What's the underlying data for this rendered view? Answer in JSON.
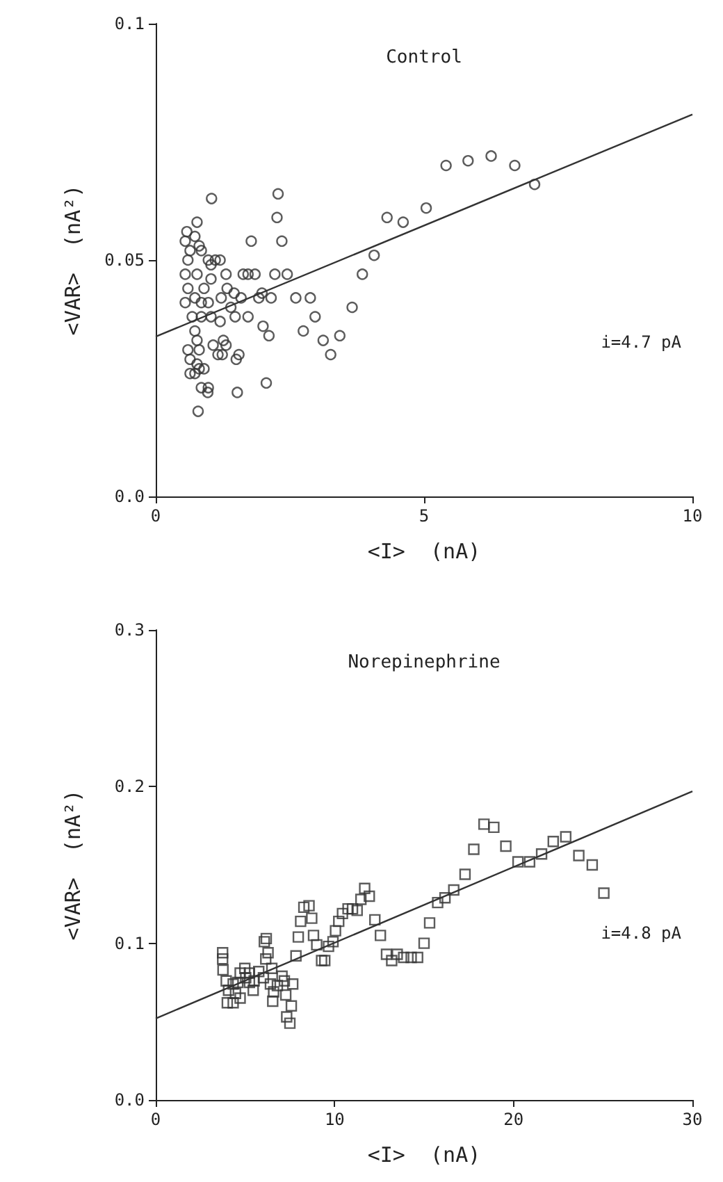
{
  "chart_data": [
    {
      "type": "scatter",
      "title": "Control",
      "xlabel": "<I>  (nA)",
      "ylabel": "<VAR>  (nA²)",
      "xlim": [
        0,
        10
      ],
      "xticks": [
        0,
        5,
        10
      ],
      "ylim": [
        0,
        0.1
      ],
      "yticks": [
        {
          "value": 0,
          "label": "0.0"
        },
        0.05,
        0.1
      ],
      "annotations": [
        "i=4.7 pA"
      ],
      "series": [
        {
          "marker": "circle",
          "color": "#333333",
          "x": [
            1.04,
            0.77,
            0.58,
            0.55,
            0.73,
            0.81,
            0.64,
            0.85,
            0.6,
            0.98,
            1.11,
            1.2,
            1.03,
            0.55,
            0.77,
            1.03,
            1.31,
            1.63,
            1.72,
            1.85,
            2.22,
            2.45,
            2.28,
            2.26,
            2.35,
            1.78,
            0.6,
            0.9,
            1.33,
            1.46,
            1.59,
            1.98,
            0.55,
            0.73,
            0.85,
            0.98,
            1.22,
            1.4,
            1.92,
            2.15,
            2.61,
            2.88,
            2.97,
            3.66,
            2.75,
            3.12,
            3.43,
            3.26,
            0.68,
            0.85,
            1.03,
            1.2,
            1.48,
            1.72,
            2.0,
            2.11,
            0.73,
            0.6,
            0.77,
            0.81,
            1.07,
            1.26,
            1.31,
            1.16,
            1.24,
            1.55,
            1.5,
            0.64,
            0.77,
            0.64,
            0.81,
            0.73,
            0.9,
            0.85,
            0.98,
            0.97,
            1.52,
            2.06,
            0.79,
            3.85,
            4.07,
            4.31,
            4.61,
            5.04,
            5.41,
            5.82,
            6.25,
            6.69,
            7.06
          ],
          "values": [
            0.063,
            0.058,
            0.056,
            0.054,
            0.055,
            0.053,
            0.052,
            0.052,
            0.05,
            0.05,
            0.05,
            0.05,
            0.049,
            0.047,
            0.047,
            0.046,
            0.047,
            0.047,
            0.047,
            0.047,
            0.047,
            0.047,
            0.064,
            0.059,
            0.054,
            0.054,
            0.044,
            0.044,
            0.044,
            0.043,
            0.042,
            0.043,
            0.041,
            0.042,
            0.041,
            0.041,
            0.042,
            0.04,
            0.042,
            0.042,
            0.042,
            0.042,
            0.038,
            0.04,
            0.035,
            0.033,
            0.034,
            0.03,
            0.038,
            0.038,
            0.038,
            0.037,
            0.038,
            0.038,
            0.036,
            0.034,
            0.035,
            0.031,
            0.033,
            0.031,
            0.032,
            0.033,
            0.032,
            0.03,
            0.03,
            0.03,
            0.029,
            0.029,
            0.028,
            0.026,
            0.027,
            0.026,
            0.027,
            0.023,
            0.023,
            0.022,
            0.022,
            0.024,
            0.018,
            0.047,
            0.051,
            0.059,
            0.058,
            0.061,
            0.07,
            0.071,
            0.072,
            0.07,
            0.066
          ]
        },
        {
          "type": "line",
          "color": "#333333",
          "x": [
            0,
            10
          ],
          "values": [
            0.0338,
            0.0808
          ]
        }
      ]
    },
    {
      "type": "scatter",
      "title": "Norepinephrine",
      "xlabel": "<I>  (nA)",
      "ylabel": "<VAR>  (nA²)",
      "xlim": [
        0,
        30
      ],
      "xticks": [
        0,
        10,
        20,
        30
      ],
      "ylim": [
        0,
        0.3
      ],
      "yticks": [
        {
          "value": 0,
          "label": "0.0"
        },
        0.1,
        0.2,
        0.3
      ],
      "annotations": [
        "i=4.8 pA"
      ],
      "series": [
        {
          "marker": "square",
          "color": "#333333",
          "x": [
            3.74,
            3.74,
            3.76,
            3.94,
            4.07,
            4.0,
            4.33,
            4.46,
            4.72,
            4.33,
            4.59,
            4.98,
            5.03,
            5.24,
            5.5,
            5.45,
            5.76,
            6.02,
            6.15,
            6.07,
            6.18,
            6.28,
            6.49,
            6.41,
            6.59,
            6.54,
            6.8,
            7.06,
            7.19,
            7.27,
            7.66,
            7.58,
            7.32,
            7.5,
            7.84,
            7.97,
            8.1,
            8.28,
            8.57,
            8.72,
            8.82,
            9.0,
            9.27,
            9.45,
            9.66,
            9.91,
            10.05,
            10.23,
            10.44,
            10.75,
            11.0,
            11.26,
            11.47,
            11.68,
            11.94,
            12.25,
            12.56,
            12.9,
            13.19,
            13.5,
            4.72,
            5.24,
            13.86,
            14.28,
            14.64,
            15.0,
            15.31,
            15.76,
            16.17,
            16.66,
            17.29,
            17.78,
            18.35,
            18.9,
            19.57,
            20.25,
            20.9,
            21.57,
            22.22,
            22.92,
            23.65,
            24.4,
            25.05
          ],
          "values": [
            0.094,
            0.09,
            0.083,
            0.076,
            0.07,
            0.062,
            0.062,
            0.068,
            0.065,
            0.074,
            0.075,
            0.084,
            0.078,
            0.081,
            0.076,
            0.07,
            0.082,
            0.078,
            0.09,
            0.101,
            0.103,
            0.094,
            0.084,
            0.074,
            0.069,
            0.063,
            0.073,
            0.079,
            0.076,
            0.067,
            0.074,
            0.06,
            0.053,
            0.049,
            0.092,
            0.104,
            0.114,
            0.123,
            0.124,
            0.116,
            0.105,
            0.099,
            0.089,
            0.089,
            0.098,
            0.101,
            0.108,
            0.114,
            0.119,
            0.122,
            0.122,
            0.121,
            0.128,
            0.135,
            0.13,
            0.115,
            0.105,
            0.093,
            0.089,
            0.093,
            0.081,
            0.075,
            0.091,
            0.091,
            0.091,
            0.1,
            0.113,
            0.126,
            0.129,
            0.134,
            0.144,
            0.16,
            0.176,
            0.174,
            0.162,
            0.152,
            0.152,
            0.157,
            0.165,
            0.168,
            0.156,
            0.15,
            0.132
          ]
        },
        {
          "type": "line",
          "color": "#333333",
          "x": [
            0,
            30
          ],
          "values": [
            0.052,
            0.197
          ]
        }
      ]
    }
  ]
}
